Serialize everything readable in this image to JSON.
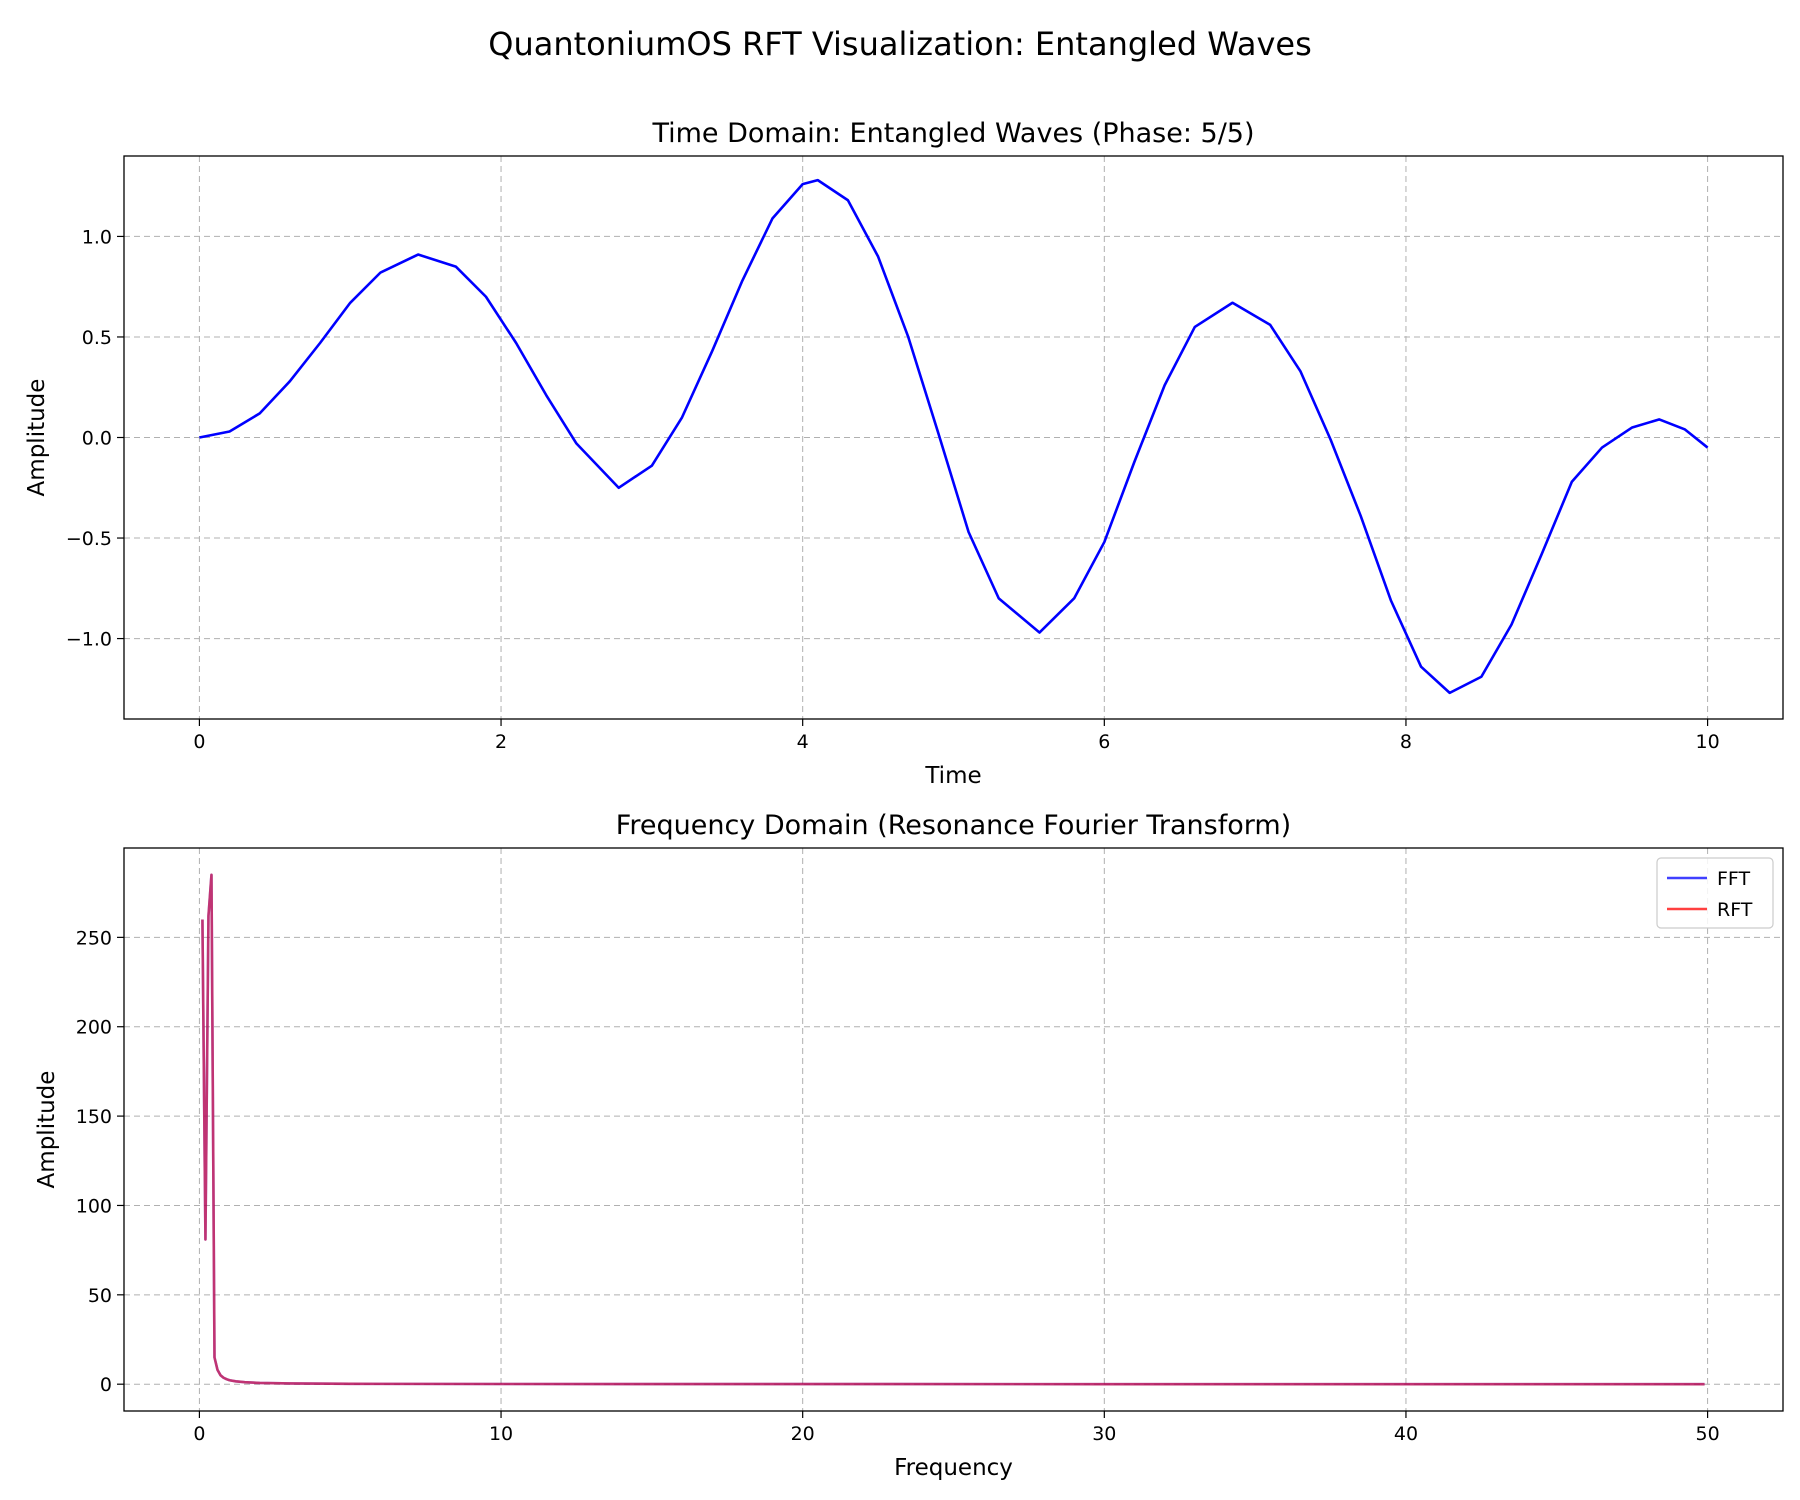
{
  "figure": {
    "suptitle": "QuantoniumOS RFT Visualization: Entangled Waves"
  },
  "colors": {
    "fft": "#0000ff",
    "rft": "#ff0000",
    "overlap": "#8b1a78",
    "grid": "#b0b0b0"
  },
  "chart_data": [
    {
      "type": "line",
      "title": "Time Domain: Entangled Waves (Phase: 5/5)",
      "xlabel": "Time",
      "ylabel": "Amplitude",
      "xlim": [
        -0.5,
        10.5
      ],
      "ylim": [
        -1.4,
        1.4
      ],
      "xticks": [
        0,
        2,
        4,
        6,
        8,
        10
      ],
      "yticks": [
        -1.0,
        -0.5,
        0.0,
        0.5,
        1.0
      ],
      "xtick_labels": [
        "0",
        "2",
        "4",
        "6",
        "8",
        "10"
      ],
      "ytick_labels": [
        "−1.0",
        "−0.5",
        "0.0",
        "0.5",
        "1.0"
      ],
      "grid": true,
      "series": [
        {
          "color": "#0000ff",
          "x": [
            0,
            0.2,
            0.4,
            0.6,
            0.8,
            1.0,
            1.2,
            1.45,
            1.7,
            1.9,
            2.1,
            2.3,
            2.5,
            2.78,
            3.0,
            3.2,
            3.4,
            3.6,
            3.8,
            4.0,
            4.1,
            4.3,
            4.5,
            4.7,
            4.9,
            5.1,
            5.3,
            5.57,
            5.8,
            6.0,
            6.2,
            6.4,
            6.6,
            6.85,
            7.1,
            7.3,
            7.5,
            7.7,
            7.9,
            8.1,
            8.29,
            8.5,
            8.7,
            8.9,
            9.1,
            9.3,
            9.5,
            9.68,
            9.85,
            10.0
          ],
          "y": [
            0.0,
            0.03,
            0.12,
            0.28,
            0.47,
            0.67,
            0.82,
            0.91,
            0.85,
            0.7,
            0.47,
            0.21,
            -0.03,
            -0.25,
            -0.14,
            0.1,
            0.43,
            0.78,
            1.09,
            1.26,
            1.28,
            1.18,
            0.9,
            0.5,
            0.02,
            -0.47,
            -0.8,
            -0.97,
            -0.8,
            -0.52,
            -0.12,
            0.26,
            0.55,
            0.67,
            0.56,
            0.33,
            -0.01,
            -0.39,
            -0.81,
            -1.14,
            -1.27,
            -1.19,
            -0.93,
            -0.58,
            -0.22,
            -0.05,
            0.05,
            0.09,
            0.04,
            -0.05
          ]
        }
      ]
    },
    {
      "type": "line",
      "title": "Frequency Domain (Resonance Fourier Transform)",
      "xlabel": "Frequency",
      "ylabel": "Amplitude",
      "xlim": [
        -2.5,
        52.5
      ],
      "ylim": [
        -15,
        300
      ],
      "xticks": [
        0,
        10,
        20,
        30,
        40,
        50
      ],
      "yticks": [
        0,
        50,
        100,
        150,
        200,
        250
      ],
      "xtick_labels": [
        "0",
        "10",
        "20",
        "30",
        "40",
        "50"
      ],
      "ytick_labels": [
        "0",
        "50",
        "100",
        "150",
        "200",
        "250"
      ],
      "grid": true,
      "legend": "top-right",
      "series": [
        {
          "name": "FFT",
          "color": "#0000ff",
          "x": [
            0.1,
            0.2,
            0.3,
            0.4,
            0.5,
            0.6,
            0.7,
            0.8,
            0.9,
            1.0,
            1.2,
            1.5,
            2.0,
            3.0,
            5.0,
            10.0,
            20.0,
            30.0,
            40.0,
            49.9
          ],
          "y": [
            260,
            81,
            262,
            285,
            15,
            8,
            5,
            3.6,
            2.8,
            2.2,
            1.6,
            1.1,
            0.7,
            0.4,
            0.2,
            0.1,
            0.05,
            0.03,
            0.02,
            0.02
          ]
        },
        {
          "name": "RFT",
          "color": "#ff0000",
          "x": [
            0.1,
            0.2,
            0.3,
            0.4,
            0.5,
            0.6,
            0.7,
            0.8,
            0.9,
            1.0,
            1.2,
            1.5,
            2.0,
            3.0,
            5.0,
            10.0,
            20.0,
            30.0,
            40.0,
            49.9
          ],
          "y": [
            260,
            81,
            262,
            285,
            15,
            8,
            5,
            3.6,
            2.8,
            2.2,
            1.6,
            1.1,
            0.7,
            0.4,
            0.2,
            0.1,
            0.05,
            0.03,
            0.02,
            0.02
          ]
        }
      ]
    }
  ]
}
